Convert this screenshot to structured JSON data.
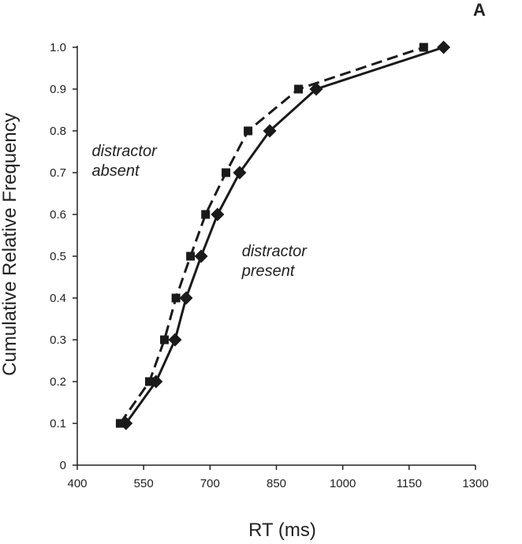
{
  "chart_data": {
    "type": "line",
    "panel_label": "A",
    "title": "",
    "xlabel": "RT (ms)",
    "ylabel": "Cumulative Relative Frequency",
    "xlim": [
      400,
      1300
    ],
    "ylim": [
      0,
      1.0
    ],
    "x_ticks": [
      400,
      550,
      700,
      850,
      1000,
      1150,
      1300
    ],
    "x_tick_labels": [
      "400",
      "550",
      "700",
      "850",
      "1000",
      "1150",
      "1300"
    ],
    "y_ticks": [
      0,
      0.1,
      0.2,
      0.3,
      0.4,
      0.5,
      0.6,
      0.7,
      0.8,
      0.9,
      1.0
    ],
    "y_tick_labels": [
      "0",
      "0.1",
      "0.2",
      "0.3",
      "0.4",
      "0.5",
      "0.6",
      "0.7",
      "0.8",
      "0.9",
      "1.0"
    ],
    "grid": false,
    "series": [
      {
        "name": "distractor absent",
        "line_style": "dashed",
        "marker": "square",
        "color": "#1a1a1a",
        "x": [
          497,
          563,
          597,
          623,
          656,
          690,
          736,
          786,
          900,
          1183
        ],
        "y": [
          0.1,
          0.2,
          0.3,
          0.4,
          0.5,
          0.6,
          0.7,
          0.8,
          0.9,
          1.0
        ]
      },
      {
        "name": "distractor present",
        "line_style": "solid",
        "marker": "diamond",
        "color": "#1a1a1a",
        "x": [
          510,
          578,
          621,
          646,
          680,
          717,
          767,
          835,
          940,
          1228
        ],
        "y": [
          0.1,
          0.2,
          0.3,
          0.4,
          0.5,
          0.6,
          0.7,
          0.8,
          0.9,
          1.0
        ]
      }
    ],
    "annotations": [
      {
        "lines": [
          "distractor",
          "absent"
        ],
        "x": 433,
        "y": 0.74
      },
      {
        "lines": [
          "distractor",
          "present"
        ],
        "x": 772,
        "y": 0.5
      }
    ]
  }
}
